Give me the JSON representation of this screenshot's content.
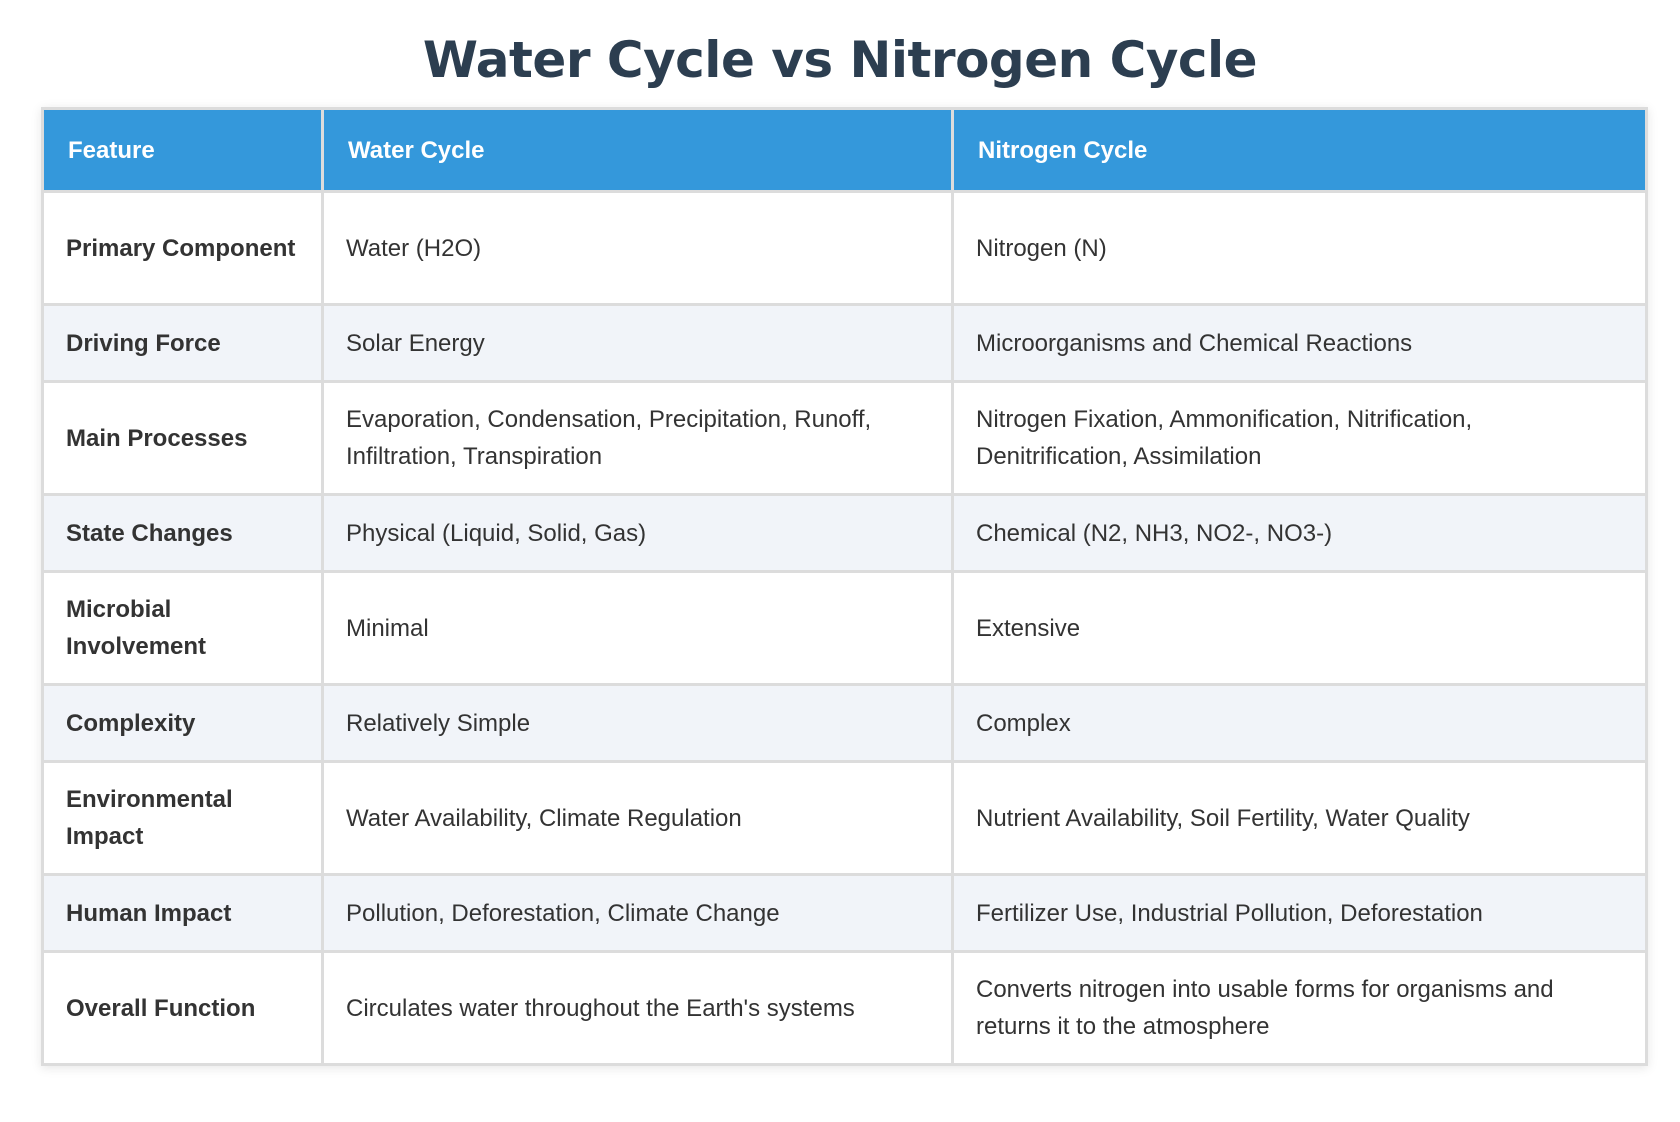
{
  "title": "Water Cycle vs Nitrogen Cycle",
  "table": {
    "headers": [
      "Feature",
      "Water Cycle",
      "Nitrogen Cycle"
    ],
    "rows": [
      {
        "feature": "Primary Component",
        "water": "Water (H2O)",
        "nitrogen": "Nitrogen (N)"
      },
      {
        "feature": "Driving Force",
        "water": "Solar Energy",
        "nitrogen": "Microorganisms and Chemical Reactions"
      },
      {
        "feature": "Main Processes",
        "water": "Evaporation, Condensation, Precipitation, Runoff, Infiltration, Transpiration",
        "nitrogen": "Nitrogen Fixation, Ammonification, Nitrification, Denitrification, Assimilation"
      },
      {
        "feature": "State Changes",
        "water": "Physical (Liquid, Solid, Gas)",
        "nitrogen": "Chemical (N2, NH3, NO2-, NO3-)"
      },
      {
        "feature": "Microbial Involvement",
        "water": "Minimal",
        "nitrogen": "Extensive"
      },
      {
        "feature": "Complexity",
        "water": "Relatively Simple",
        "nitrogen": "Complex"
      },
      {
        "feature": "Environmental Impact",
        "water": "Water Availability, Climate Regulation",
        "nitrogen": "Nutrient Availability, Soil Fertility, Water Quality"
      },
      {
        "feature": "Human Impact",
        "water": "Pollution, Deforestation, Climate Change",
        "nitrogen": "Fertilizer Use, Industrial Pollution, Deforestation"
      },
      {
        "feature": "Overall Function",
        "water": "Circulates water throughout the Earth's systems",
        "nitrogen": "Converts nitrogen into usable forms for organisms and returns it to the atmosphere"
      }
    ]
  },
  "colors": {
    "title": "#2c3e50",
    "header_bg": "#3498db",
    "header_text": "#ffffff",
    "row_alt_bg": "#f1f4f9",
    "border": "#dcdcdc"
  }
}
